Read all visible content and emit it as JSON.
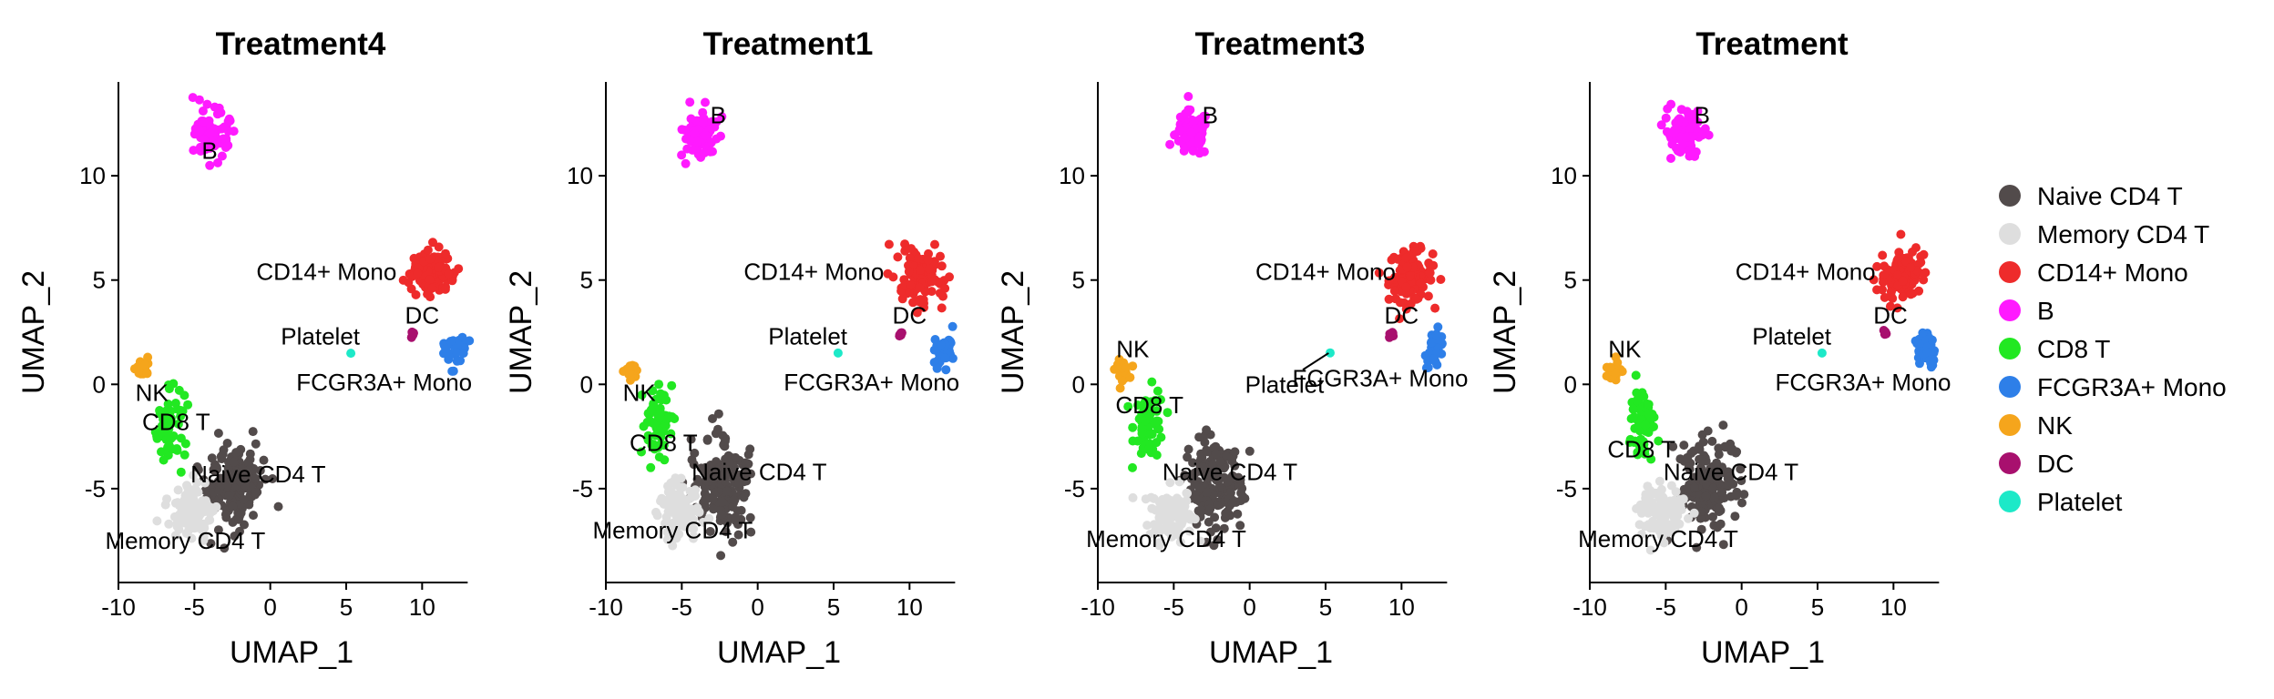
{
  "chart_data": {
    "type": "scatter",
    "xlabel": "UMAP_1",
    "ylabel": "UMAP_2",
    "xlim": [
      -10,
      14
    ],
    "ylim": [
      -9.5,
      14.5
    ],
    "xticks": [
      -10,
      -5,
      0,
      5,
      10
    ],
    "xtick_labels": [
      "-10",
      "-5",
      "0",
      "5",
      "10"
    ],
    "yticks": [
      -5,
      0,
      5,
      10
    ],
    "ytick_labels": [
      "-5",
      "0",
      "5",
      "10"
    ],
    "legend_position": "right",
    "clusters": [
      {
        "name": "Naive CD4 T",
        "color": "#524b4b",
        "center": [
          -2.3,
          -4.8
        ],
        "spread": [
          1.6,
          1.9
        ],
        "n": 170
      },
      {
        "name": "Memory CD4 T",
        "color": "#dedede",
        "center": [
          -5.2,
          -6.2
        ],
        "spread": [
          1.3,
          1.2
        ],
        "n": 110
      },
      {
        "name": "CD14+ Mono",
        "color": "#ee2b2b",
        "center": [
          10.6,
          5.2
        ],
        "spread": [
          1.3,
          1.1
        ],
        "n": 120
      },
      {
        "name": "B",
        "color": "#ff1aff",
        "center": [
          -3.8,
          12.0
        ],
        "spread": [
          1.0,
          1.0
        ],
        "n": 90
      },
      {
        "name": "CD8 T",
        "color": "#22e822",
        "center": [
          -6.6,
          -1.9
        ],
        "spread": [
          0.9,
          1.5
        ],
        "n": 60
      },
      {
        "name": "FCGR3A+ Mono",
        "color": "#2e7fe8",
        "center": [
          12.2,
          1.7
        ],
        "spread": [
          0.6,
          0.8
        ],
        "n": 35
      },
      {
        "name": "NK",
        "color": "#f5a51c",
        "center": [
          -8.4,
          0.7
        ],
        "spread": [
          0.4,
          0.4
        ],
        "n": 25
      },
      {
        "name": "DC",
        "color": "#a8106e",
        "center": [
          9.3,
          2.4
        ],
        "spread": [
          0.2,
          0.25
        ],
        "n": 5
      },
      {
        "name": "Platelet",
        "color": "#1de9c8",
        "center": [
          5.3,
          1.5
        ],
        "spread": [
          0.01,
          0.01
        ],
        "n": 1
      }
    ],
    "panels": [
      {
        "title": "Treatment4",
        "labels": [
          {
            "text": "B",
            "x": -4.0,
            "y": 11.2
          },
          {
            "text": "CD14+ Mono",
            "x": 3.7,
            "y": 5.4
          },
          {
            "text": "Platelet",
            "x": 3.3,
            "y": 2.3
          },
          {
            "text": "DC",
            "x": 10.0,
            "y": 3.3
          },
          {
            "text": "FCGR3A+ Mono",
            "x": 7.5,
            "y": 0.1
          },
          {
            "text": "NK",
            "x": -7.8,
            "y": -0.4
          },
          {
            "text": "CD8 T",
            "x": -6.2,
            "y": -1.8
          },
          {
            "text": "Naive CD4 T",
            "x": -0.8,
            "y": -4.3
          },
          {
            "text": "Memory CD4 T",
            "x": -5.6,
            "y": -7.5
          }
        ]
      },
      {
        "title": "Treatment1",
        "labels": [
          {
            "text": "B",
            "x": -2.6,
            "y": 12.9
          },
          {
            "text": "CD14+ Mono",
            "x": 3.7,
            "y": 5.4
          },
          {
            "text": "Platelet",
            "x": 3.3,
            "y": 2.3
          },
          {
            "text": "DC",
            "x": 10.0,
            "y": 3.3
          },
          {
            "text": "FCGR3A+ Mono",
            "x": 7.5,
            "y": 0.1
          },
          {
            "text": "NK",
            "x": -7.8,
            "y": -0.4
          },
          {
            "text": "CD8 T",
            "x": -6.2,
            "y": -2.8
          },
          {
            "text": "Naive CD4 T",
            "x": 0.1,
            "y": -4.2
          },
          {
            "text": "Memory CD4 T",
            "x": -5.6,
            "y": -7.0
          }
        ]
      },
      {
        "title": "Treatment3",
        "labels": [
          {
            "text": "B",
            "x": -2.6,
            "y": 12.9
          },
          {
            "text": "CD14+ Mono",
            "x": 5.0,
            "y": 5.4
          },
          {
            "text": "Platelet",
            "x": 2.3,
            "y": 0.0
          },
          {
            "text": "DC",
            "x": 10.0,
            "y": 3.3
          },
          {
            "text": "FCGR3A+ Mono",
            "x": 8.6,
            "y": 0.3
          },
          {
            "text": "NK",
            "x": -7.7,
            "y": 1.7
          },
          {
            "text": "CD8 T",
            "x": -6.6,
            "y": -1.0
          },
          {
            "text": "Naive CD4 T",
            "x": -1.3,
            "y": -4.2
          },
          {
            "text": "Memory CD4 T",
            "x": -5.5,
            "y": -7.4
          }
        ]
      },
      {
        "title": "Treatment",
        "labels": [
          {
            "text": "B",
            "x": -2.6,
            "y": 12.9
          },
          {
            "text": "CD14+ Mono",
            "x": 4.2,
            "y": 5.4
          },
          {
            "text": "Platelet",
            "x": 3.3,
            "y": 2.3
          },
          {
            "text": "DC",
            "x": 9.8,
            "y": 3.3
          },
          {
            "text": "FCGR3A+ Mono",
            "x": 8.0,
            "y": 0.1
          },
          {
            "text": "NK",
            "x": -7.7,
            "y": 1.7
          },
          {
            "text": "CD8 T",
            "x": -6.6,
            "y": -3.1
          },
          {
            "text": "Naive CD4 T",
            "x": -0.7,
            "y": -4.2
          },
          {
            "text": "Memory CD4 T",
            "x": -5.5,
            "y": -7.4
          }
        ]
      }
    ]
  }
}
